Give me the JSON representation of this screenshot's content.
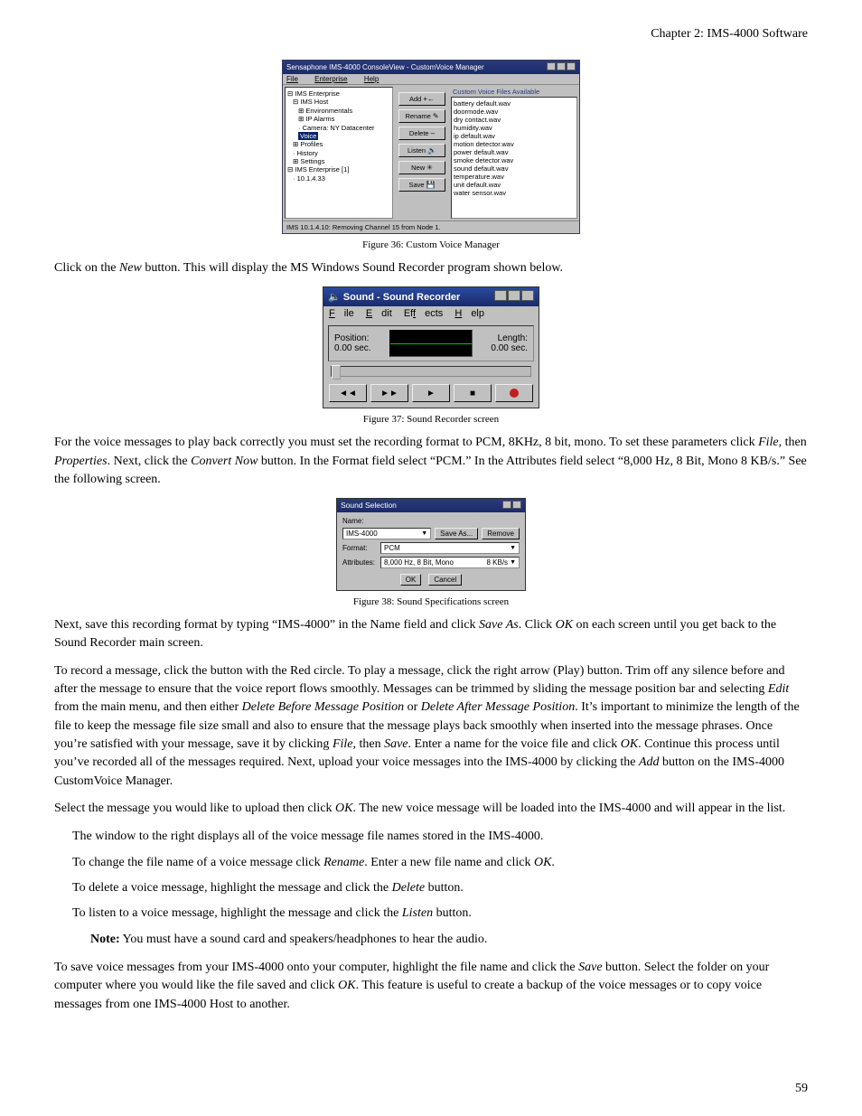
{
  "chapter_header": "Chapter 2: IMS-4000 Software",
  "page_number": "59",
  "fig36": {
    "title": "Sensaphone IMS-4000 ConsoleView - CustomVoice Manager",
    "menu": {
      "file": "File",
      "enterprise": "Enterprise",
      "help": "Help"
    },
    "tree": {
      "root": "IMS Enterprise",
      "host": "IMS Host",
      "env": "Environmentals",
      "ip": "IP Alarms",
      "camera": "Camera: NY Datacenter",
      "voice": "Voice",
      "profiles": "Profiles",
      "history": "History",
      "settings": "Settings",
      "ent1": "IMS Enterprise [1]",
      "ip_addr": "10.1.4.33"
    },
    "buttons": {
      "add": "Add",
      "rename": "Rename",
      "delete": "Delete",
      "listen": "Listen",
      "new": "New",
      "save": "Save"
    },
    "list_header": "Custom Voice Files Available",
    "list_items": {
      "i1": "battery default.wav",
      "i2": "doormode.wav",
      "i3": "dry contact.wav",
      "i4": "humidity.wav",
      "i5": "ip default.wav",
      "i6": "motion detector.wav",
      "i7": "power default.wav",
      "i8": "smoke detector.wav",
      "i9": "sound default.wav",
      "i10": "temperature.wav",
      "i11": "unit default.wav",
      "i12": "water sensor.wav"
    },
    "status": "IMS 10.1.4.10: Removing Channel 15 from Node 1.",
    "caption": "Figure 36: Custom Voice Manager"
  },
  "p1": {
    "a": "Click on the ",
    "b": "New",
    "c": " button. This will display the MS Windows Sound Recorder program shown below."
  },
  "fig37": {
    "title": "Sound - Sound Recorder",
    "menu": {
      "file": "File",
      "edit": "Edit",
      "effects": "Effects",
      "help": "Help",
      "file_u": "F",
      "edit_u": "E",
      "effects_u": "f",
      "help_u": "H"
    },
    "position_label": "Position:",
    "position_value": "0.00 sec.",
    "length_label": "Length:",
    "length_value": "0.00 sec.",
    "btn_rew": "◄◄",
    "btn_fwd": "►►",
    "btn_play": "►",
    "btn_stop": "■",
    "caption": "Figure 37: Sound Recorder screen"
  },
  "p2": {
    "a": "For the voice messages to play back correctly you must set the recording format to PCM, 8KHz, 8 bit, mono. To set these parameters click ",
    "b": "File",
    "c": ", then ",
    "d": "Properties",
    "e": ". Next, click the ",
    "f": "Convert Now",
    "g": " button. In the Format field select “PCM.” In the Attributes field select “8,000 Hz, 8 Bit, Mono 8 KB/s.” See the following screen."
  },
  "fig38": {
    "title": "Sound Selection",
    "name_label": "Name:",
    "name_value": "IMS-4000",
    "saveas": "Save As...",
    "remove": "Remove",
    "format_label": "Format:",
    "format_value": "PCM",
    "attr_label": "Attributes:",
    "attr_value": "8,000 Hz, 8 Bit, Mono",
    "attr_kb": "8 KB/s",
    "ok": "OK",
    "cancel": "Cancel",
    "caption": "Figure 38: Sound Specifications screen"
  },
  "p3": {
    "a": "Next, save this recording format by typing “IMS-4000” in the Name field and click ",
    "b": "Save As",
    "c": ". Click ",
    "d": "OK",
    "e": " on each screen until you get back to the Sound Recorder main screen."
  },
  "p4": {
    "a": "To record a message, click the button with the Red circle. To play a message, click the right arrow (Play) button. Trim off any silence before and after the message to ensure that the voice report flows smoothly. Messages can be trimmed by sliding the message position bar and selecting ",
    "b": "Edit",
    "c": " from the main menu, and then either ",
    "d": "Delete Before Message Position",
    "e": " or ",
    "f": "Delete After Message Position",
    "g": ". It’s important to minimize the length of the file to keep the message file size small and also to ensure that the message plays back smoothly when inserted into the message phrases. Once you’re satisfied with your message, save it by clicking ",
    "h": "File",
    "i": ", then ",
    "j": "Save",
    "k": ". Enter a name for the voice file and click ",
    "l": "OK",
    "m": ". Continue this process until you’ve recorded all of the messages required. Next, upload your voice messages into the IMS-4000 by clicking the ",
    "n": "Add",
    "o": " button on the IMS-4000 CustomVoice Manager."
  },
  "p5": {
    "a": "Select the message you would like to upload then click ",
    "b": "OK",
    "c": ". The new voice message will be loaded into the IMS-4000 and will appear in the list."
  },
  "line1": "The window to the right displays all of the voice message file names stored in the IMS-4000.",
  "line2": {
    "a": "To change the file name of a voice message click ",
    "b": "Rename",
    "c": ". Enter a new file name and click ",
    "d": "OK",
    "e": "."
  },
  "line3": {
    "a": "To delete a voice message, highlight the message and click the ",
    "b": "Delete",
    "c": " button."
  },
  "line4": {
    "a": "To listen to a voice message, highlight the message and click the ",
    "b": "Listen",
    "c": " button."
  },
  "note": {
    "a": "Note:",
    "b": " You must have a sound card and speakers/headphones to hear the audio."
  },
  "p6": {
    "a": "To save voice messages from your IMS-4000 onto your computer, highlight the file name and click the ",
    "b": "Save",
    "c": " button. Select the folder on your computer where you would like the file saved and click ",
    "d": "OK",
    "e": ". This feature is useful to create a backup of the voice messages or to copy voice messages from one IMS-4000 Host to another."
  },
  "colors": {
    "titlebar": "#1a2a6a",
    "win_gray": "#c0c0c0",
    "text": "#000000",
    "record_red": "#c02020"
  }
}
